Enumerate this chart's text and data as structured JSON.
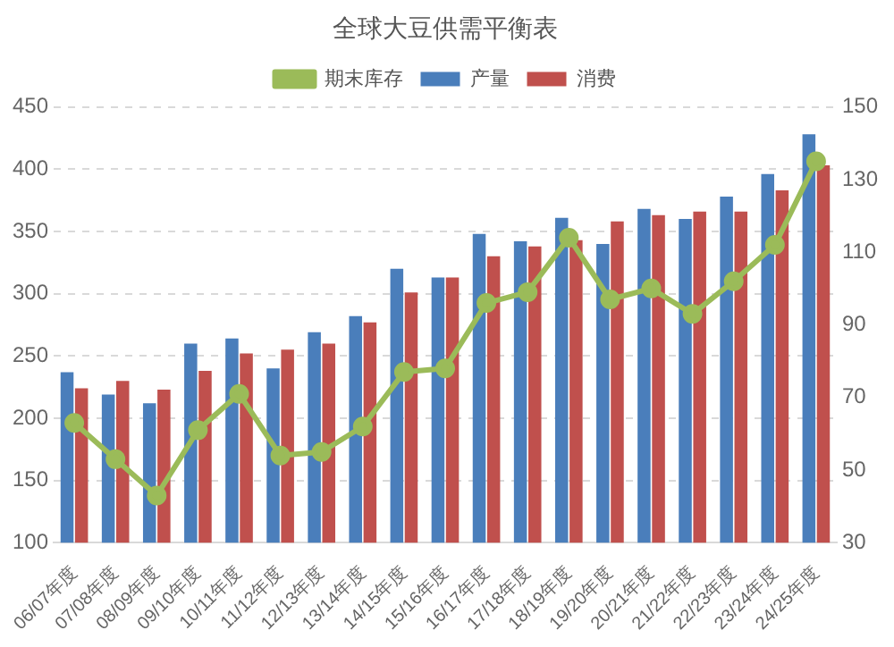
{
  "chart_data": {
    "type": "bar",
    "title": "全球大豆供需平衡表",
    "categories": [
      "06/07年度",
      "07/08年度",
      "08/09年度",
      "09/10年度",
      "10/11年度",
      "11/12年度",
      "12/13年度",
      "13/14年度",
      "14/15年度",
      "15/16年度",
      "16/17年度",
      "17/18年度",
      "18/19年度",
      "19/20年度",
      "20/21年度",
      "21/22年度",
      "22/23年度",
      "23/24年度",
      "24/25年度"
    ],
    "series": [
      {
        "name": "产量",
        "color": "#4a7ebb",
        "values": [
          237,
          219,
          212,
          260,
          264,
          240,
          269,
          282,
          320,
          313,
          348,
          342,
          361,
          340,
          368,
          360,
          378,
          396,
          428
        ]
      },
      {
        "name": "消费",
        "color": "#c0504d",
        "values": [
          224,
          230,
          223,
          238,
          252,
          255,
          260,
          277,
          301,
          313,
          330,
          338,
          343,
          358,
          363,
          366,
          366,
          383,
          403
        ]
      },
      {
        "name": "期末库存",
        "type": "line",
        "axis": "y2",
        "color": "#9bbb59",
        "marker": "circle",
        "values": [
          63,
          53,
          43,
          61,
          71,
          54,
          55,
          62,
          77,
          78,
          96,
          99,
          114,
          97,
          100,
          93,
          102,
          112,
          135
        ]
      }
    ],
    "ylim": [
      100,
      450
    ],
    "yticks": [
      100,
      150,
      200,
      250,
      300,
      350,
      400,
      450
    ],
    "y2lim": [
      30,
      150
    ],
    "y2ticks": [
      30,
      50,
      70,
      90,
      110,
      130,
      150
    ],
    "grid": "y",
    "legend": "top"
  }
}
